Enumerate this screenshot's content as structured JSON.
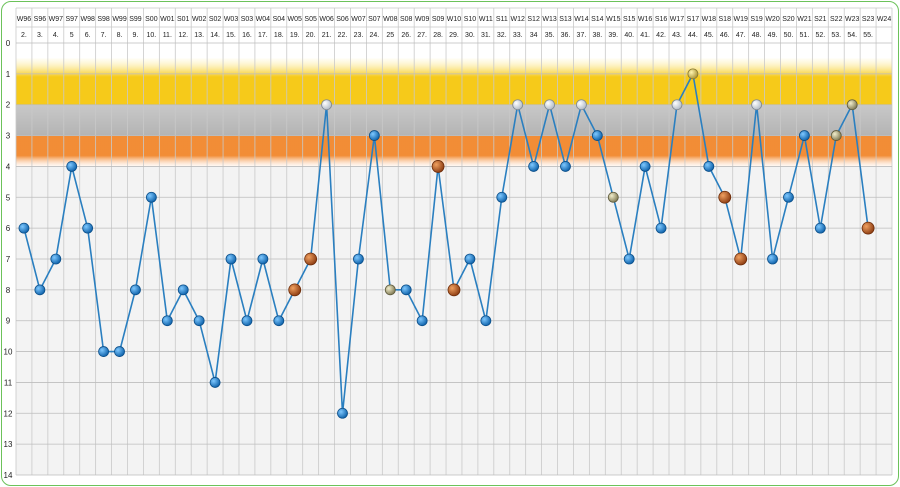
{
  "chart_data": {
    "type": "line",
    "title": "",
    "xlabel": "",
    "ylabel": "",
    "ylim": [
      0,
      14
    ],
    "y_inverted": true,
    "y_ticks": [
      0,
      1,
      2,
      3,
      4,
      5,
      6,
      7,
      8,
      9,
      10,
      11,
      12,
      13,
      14
    ],
    "grid": true,
    "bands": [
      {
        "name": "gold",
        "from": 0.5,
        "to": 2,
        "color": "#f5c400"
      },
      {
        "name": "silver",
        "from": 2,
        "to": 3,
        "color": "#c0c0c0"
      },
      {
        "name": "orange",
        "from": 3,
        "to": 4,
        "color": "#f08020"
      }
    ],
    "seasons": [
      "W96",
      "S96",
      "W97",
      "S97",
      "W98",
      "S98",
      "W99",
      "S99",
      "S00",
      "W01",
      "S01",
      "W02",
      "S02",
      "W03",
      "S03",
      "W04",
      "S04",
      "W05",
      "S05",
      "W06",
      "S06",
      "W07",
      "S07",
      "W08",
      "S08",
      "W09",
      "S09",
      "W10",
      "S10",
      "W11",
      "S11",
      "W12",
      "S12",
      "W13",
      "S13",
      "W14",
      "S14",
      "W15",
      "S15",
      "W16",
      "S16",
      "W17",
      "S17",
      "W18",
      "S18",
      "W19",
      "S19",
      "W20",
      "S20",
      "W21",
      "S21",
      "S22",
      "W23",
      "S23",
      "W24"
    ],
    "categories": [
      "2.",
      "3.",
      "4.",
      "5",
      "6.",
      "7.",
      "8.",
      "9.",
      "10.",
      "11.",
      "12.",
      "13.",
      "14.",
      "15.",
      "16.",
      "17.",
      "18.",
      "19.",
      "20.",
      "21.",
      "22.",
      "23.",
      "24.",
      "25",
      "26.",
      "27.",
      "28.",
      "29.",
      "30.",
      "31.",
      "32.",
      "33.",
      "34",
      "35.",
      "36.",
      "37.",
      "38.",
      "39.",
      "40.",
      "41.",
      "42.",
      "43.",
      "44.",
      "45.",
      "46.",
      "47.",
      "48.",
      "49.",
      "50.",
      "51.",
      "52.",
      "53.",
      "54.",
      "55."
    ],
    "series": [
      {
        "values": [
          6,
          8,
          7,
          4,
          6,
          10,
          10,
          8,
          5,
          9,
          8,
          9,
          11,
          7,
          9,
          7,
          9,
          8,
          7,
          2,
          12,
          7,
          3,
          8,
          8,
          9,
          4,
          8,
          7,
          9,
          5,
          2,
          4,
          2,
          4,
          2,
          3,
          5,
          7,
          4,
          6,
          2,
          1,
          4,
          5,
          7,
          2,
          7,
          5,
          3,
          6,
          3,
          2,
          6
        ],
        "color": "#2a7fc0"
      }
    ],
    "marker_colors": {
      "default": "#1a78c8",
      "gold": "#d4b43a",
      "silver": "#e4e8ee",
      "bronze": "#c0642a",
      "olive": "#a8a070"
    }
  }
}
